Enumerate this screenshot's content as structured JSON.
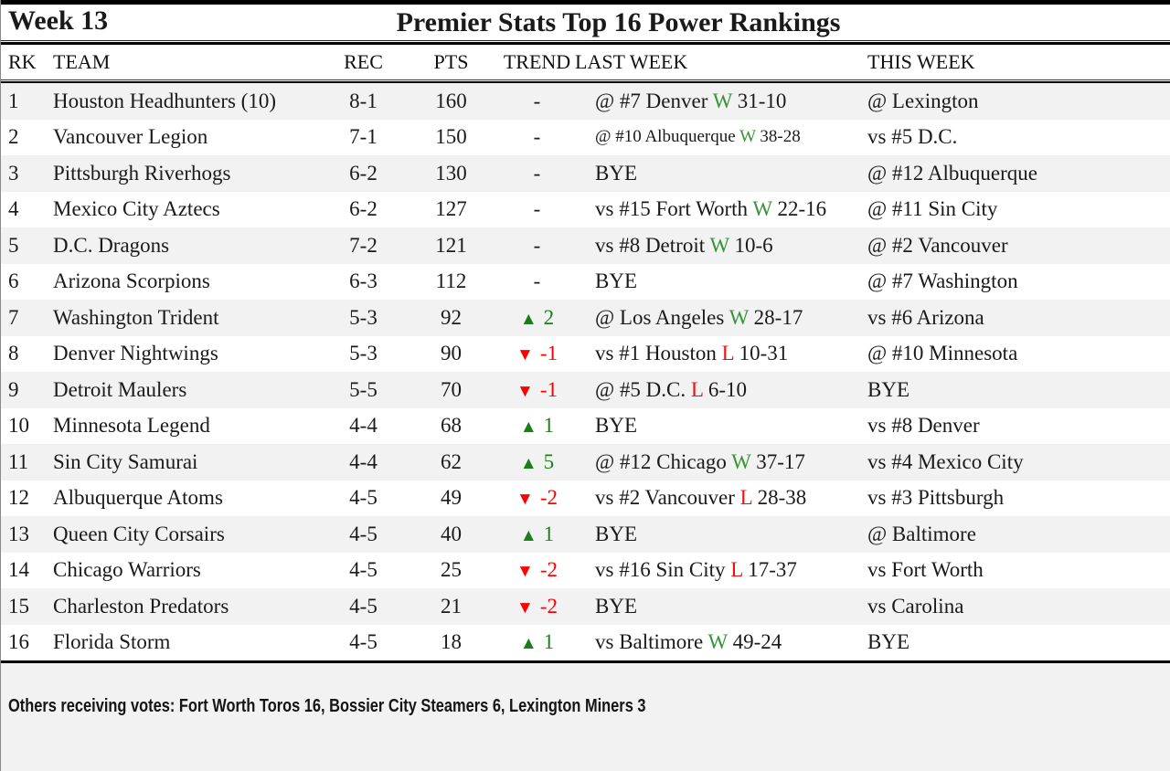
{
  "title_bar": {
    "week": "Week 13",
    "title": "Premier Stats Top 16 Power Rankings"
  },
  "columns": [
    "RK",
    "TEAM",
    "REC",
    "PTS",
    "TREND",
    "LAST WEEK",
    "THIS WEEK"
  ],
  "colors": {
    "stripe": "#f2f2f2",
    "win_green": "#379437",
    "loss_red": "#ee1111",
    "trend_up_green": "#1b7e1b",
    "trend_down_red": "#ff0000",
    "rule_black": "#000000"
  },
  "trend_icons": {
    "up": "▲",
    "down": "▼",
    "none": "-"
  },
  "rows": [
    {
      "rk": "1",
      "team": "Houston Headhunters (10)",
      "rec": "8-1",
      "pts": "160",
      "trend": {
        "dir": "none",
        "value": "-"
      },
      "last_week": {
        "text": "@ #7 Denver",
        "result": "W",
        "score": "31-10"
      },
      "this_week": "@ Lexington"
    },
    {
      "rk": "2",
      "team": "Vancouver Legion",
      "rec": "7-1",
      "pts": "150",
      "trend": {
        "dir": "none",
        "value": "-"
      },
      "last_week": {
        "text": "@ #10 Albuquerque",
        "result": "W",
        "score": "38-28"
      },
      "this_week": "vs #5 D.C."
    },
    {
      "rk": "3",
      "team": "Pittsburgh Riverhogs",
      "rec": "6-2",
      "pts": "130",
      "trend": {
        "dir": "none",
        "value": "-"
      },
      "last_week": {
        "text": "BYE",
        "result": "",
        "score": ""
      },
      "this_week": "@ #12 Albuquerque"
    },
    {
      "rk": "4",
      "team": "Mexico City Aztecs",
      "rec": "6-2",
      "pts": "127",
      "trend": {
        "dir": "none",
        "value": "-"
      },
      "last_week": {
        "text": "vs #15 Fort Worth",
        "result": "W",
        "score": "22-16"
      },
      "this_week": "@ #11 Sin City"
    },
    {
      "rk": "5",
      "team": "D.C. Dragons",
      "rec": "7-2",
      "pts": "121",
      "trend": {
        "dir": "none",
        "value": "-"
      },
      "last_week": {
        "text": "vs #8 Detroit",
        "result": "W",
        "score": "10-6"
      },
      "this_week": "@ #2 Vancouver"
    },
    {
      "rk": "6",
      "team": "Arizona Scorpions",
      "rec": "6-3",
      "pts": "112",
      "trend": {
        "dir": "none",
        "value": "-"
      },
      "last_week": {
        "text": "BYE",
        "result": "",
        "score": ""
      },
      "this_week": "@ #7 Washington"
    },
    {
      "rk": "7",
      "team": "Washington Trident",
      "rec": "5-3",
      "pts": "92",
      "trend": {
        "dir": "up",
        "value": "2"
      },
      "last_week": {
        "text": "@ Los Angeles",
        "result": "W",
        "score": "28-17"
      },
      "this_week": "vs #6 Arizona"
    },
    {
      "rk": "8",
      "team": "Denver Nightwings",
      "rec": "5-3",
      "pts": "90",
      "trend": {
        "dir": "down",
        "value": "-1"
      },
      "last_week": {
        "text": "vs #1 Houston",
        "result": "L",
        "score": "10-31"
      },
      "this_week": "@ #10 Minnesota"
    },
    {
      "rk": "9",
      "team": "Detroit Maulers",
      "rec": "5-5",
      "pts": "70",
      "trend": {
        "dir": "down",
        "value": "-1"
      },
      "last_week": {
        "text": "@ #5 D.C.",
        "result": "L",
        "score": "6-10"
      },
      "this_week": "BYE"
    },
    {
      "rk": "10",
      "team": "Minnesota Legend",
      "rec": "4-4",
      "pts": "68",
      "trend": {
        "dir": "up",
        "value": "1"
      },
      "last_week": {
        "text": "BYE",
        "result": "",
        "score": ""
      },
      "this_week": "vs #8 Denver"
    },
    {
      "rk": "11",
      "team": "Sin City Samurai",
      "rec": "4-4",
      "pts": "62",
      "trend": {
        "dir": "up",
        "value": "5"
      },
      "last_week": {
        "text": "@ #12 Chicago",
        "result": "W",
        "score": "37-17"
      },
      "this_week": "vs #4 Mexico City"
    },
    {
      "rk": "12",
      "team": "Albuquerque Atoms",
      "rec": "4-5",
      "pts": "49",
      "trend": {
        "dir": "down",
        "value": "-2"
      },
      "last_week": {
        "text": "vs #2 Vancouver",
        "result": "L",
        "score": "28-38"
      },
      "this_week": "vs #3 Pittsburgh"
    },
    {
      "rk": "13",
      "team": "Queen City Corsairs",
      "rec": "4-5",
      "pts": "40",
      "trend": {
        "dir": "up",
        "value": "1"
      },
      "last_week": {
        "text": "BYE",
        "result": "",
        "score": ""
      },
      "this_week": "@ Baltimore"
    },
    {
      "rk": "14",
      "team": "Chicago Warriors",
      "rec": "4-5",
      "pts": "25",
      "trend": {
        "dir": "down",
        "value": "-2"
      },
      "last_week": {
        "text": "vs #16 Sin City",
        "result": "L",
        "score": "17-37"
      },
      "this_week": "vs Fort Worth"
    },
    {
      "rk": "15",
      "team": "Charleston Predators",
      "rec": "4-5",
      "pts": "21",
      "trend": {
        "dir": "down",
        "value": "-2"
      },
      "last_week": {
        "text": "BYE",
        "result": "",
        "score": ""
      },
      "this_week": "vs Carolina"
    },
    {
      "rk": "16",
      "team": "Florida Storm",
      "rec": "4-5",
      "pts": "18",
      "trend": {
        "dir": "up",
        "value": "1"
      },
      "last_week": {
        "text": "vs Baltimore",
        "result": "W",
        "score": "49-24"
      },
      "this_week": "BYE"
    }
  ],
  "footer": {
    "others": "Others receiving votes: Fort Worth Toros 16, Bossier City Steamers 6, Lexington Miners 3"
  }
}
